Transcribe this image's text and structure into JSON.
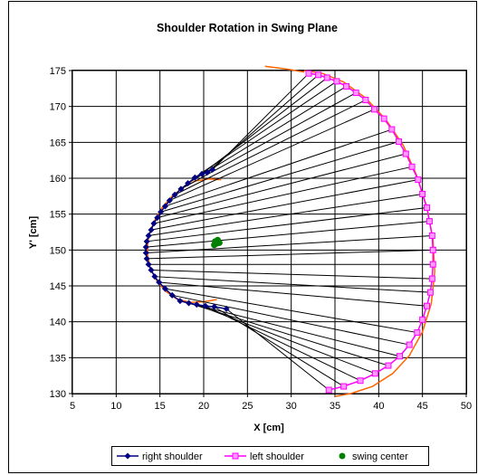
{
  "chart_data": {
    "type": "scatter",
    "title": "Shoulder Rotation in Swing Plane",
    "xlabel": "X [cm]",
    "ylabel": "Y' [cm]",
    "xlim": [
      5,
      50
    ],
    "ylim": [
      130,
      175
    ],
    "x_ticks": [
      "5",
      "10",
      "15",
      "20",
      "25",
      "30",
      "35",
      "40",
      "45",
      "50"
    ],
    "y_ticks": [
      "130",
      "135",
      "140",
      "145",
      "150",
      "155",
      "160",
      "165",
      "170",
      "175"
    ],
    "grid": true,
    "legend": "bottom",
    "series": [
      {
        "name": "right shoulder",
        "color": "#000080",
        "marker": "diamond",
        "points": [
          [
            21.0,
            161.2
          ],
          [
            20.4,
            160.8
          ],
          [
            19.8,
            160.6
          ],
          [
            19.0,
            160.1
          ],
          [
            18.2,
            159.3
          ],
          [
            17.4,
            158.5
          ],
          [
            16.7,
            157.7
          ],
          [
            16.1,
            156.9
          ],
          [
            15.6,
            156.1
          ],
          [
            15.1,
            155.3
          ],
          [
            14.7,
            154.5
          ],
          [
            14.3,
            153.7
          ],
          [
            14.0,
            152.8
          ],
          [
            13.7,
            152.0
          ],
          [
            13.5,
            151.2
          ],
          [
            13.4,
            150.4
          ],
          [
            13.4,
            149.6
          ],
          [
            13.5,
            148.8
          ],
          [
            13.7,
            148.0
          ],
          [
            14.0,
            147.2
          ],
          [
            14.4,
            146.3
          ],
          [
            14.9,
            145.5
          ],
          [
            15.6,
            144.6
          ],
          [
            16.4,
            143.7
          ],
          [
            17.3,
            142.9
          ],
          [
            18.3,
            142.6
          ],
          [
            19.2,
            142.4
          ],
          [
            20.2,
            142.2
          ],
          [
            21.2,
            142.1
          ],
          [
            22.6,
            141.8
          ]
        ]
      },
      {
        "name": "left shoulder",
        "color": "#ff00ff",
        "marker": "square",
        "points": [
          [
            32.0,
            174.6
          ],
          [
            33.1,
            174.4
          ],
          [
            34.1,
            174.0
          ],
          [
            35.2,
            173.5
          ],
          [
            36.3,
            172.8
          ],
          [
            37.4,
            171.9
          ],
          [
            38.5,
            170.9
          ],
          [
            39.5,
            169.6
          ],
          [
            40.6,
            168.3
          ],
          [
            41.5,
            166.8
          ],
          [
            42.3,
            165.1
          ],
          [
            43.1,
            163.4
          ],
          [
            43.8,
            161.6
          ],
          [
            44.5,
            159.8
          ],
          [
            45.0,
            157.8
          ],
          [
            45.5,
            155.9
          ],
          [
            45.8,
            154.0
          ],
          [
            46.1,
            152.0
          ],
          [
            46.2,
            150.0
          ],
          [
            46.2,
            148.0
          ],
          [
            46.1,
            146.0
          ],
          [
            45.9,
            144.1
          ],
          [
            45.5,
            142.2
          ],
          [
            45.0,
            140.3
          ],
          [
            44.4,
            138.5
          ],
          [
            43.5,
            136.8
          ],
          [
            42.4,
            135.2
          ],
          [
            41.1,
            133.9
          ],
          [
            39.6,
            132.8
          ],
          [
            37.9,
            131.8
          ],
          [
            36.0,
            131.0
          ],
          [
            34.3,
            130.5
          ]
        ]
      },
      {
        "name": "swing center",
        "color": "#008000",
        "marker": "circle",
        "points": [
          [
            21.3,
            151.2
          ],
          [
            21.5,
            150.9
          ],
          [
            21.8,
            151.0
          ],
          [
            21.2,
            150.7
          ],
          [
            21.6,
            151.4
          ]
        ]
      }
    ],
    "connector_color": "#000000",
    "fit_curve_color": "#ff6600",
    "fit_curves": [
      [
        [
          31.5,
          175.0
        ],
        [
          33.6,
          174.6
        ],
        [
          36.0,
          173.4
        ],
        [
          38.5,
          171.2
        ],
        [
          40.8,
          168.2
        ],
        [
          42.8,
          164.6
        ],
        [
          44.3,
          160.5
        ],
        [
          45.5,
          156.0
        ],
        [
          46.2,
          151.5
        ],
        [
          46.4,
          147.0
        ],
        [
          46.0,
          142.5
        ],
        [
          45.0,
          138.6
        ],
        [
          43.5,
          135.3
        ],
        [
          41.6,
          132.8
        ],
        [
          39.3,
          131.0
        ],
        [
          36.8,
          130.0
        ],
        [
          35.0,
          129.6
        ]
      ],
      [
        [
          27.0,
          175.6
        ],
        [
          29.5,
          175.2
        ],
        [
          31.5,
          174.8
        ]
      ],
      [
        [
          22.0,
          159.8
        ],
        [
          20.5,
          159.9
        ],
        [
          19.0,
          159.6
        ],
        [
          17.6,
          158.7
        ],
        [
          16.4,
          157.5
        ],
        [
          15.3,
          156.0
        ],
        [
          14.5,
          154.4
        ],
        [
          13.9,
          152.7
        ],
        [
          13.6,
          151.0
        ],
        [
          13.6,
          149.2
        ],
        [
          13.9,
          147.5
        ],
        [
          14.6,
          145.8
        ],
        [
          15.6,
          144.3
        ],
        [
          16.9,
          143.2
        ],
        [
          18.4,
          142.7
        ],
        [
          20.0,
          142.8
        ],
        [
          21.5,
          143.1
        ]
      ]
    ]
  }
}
